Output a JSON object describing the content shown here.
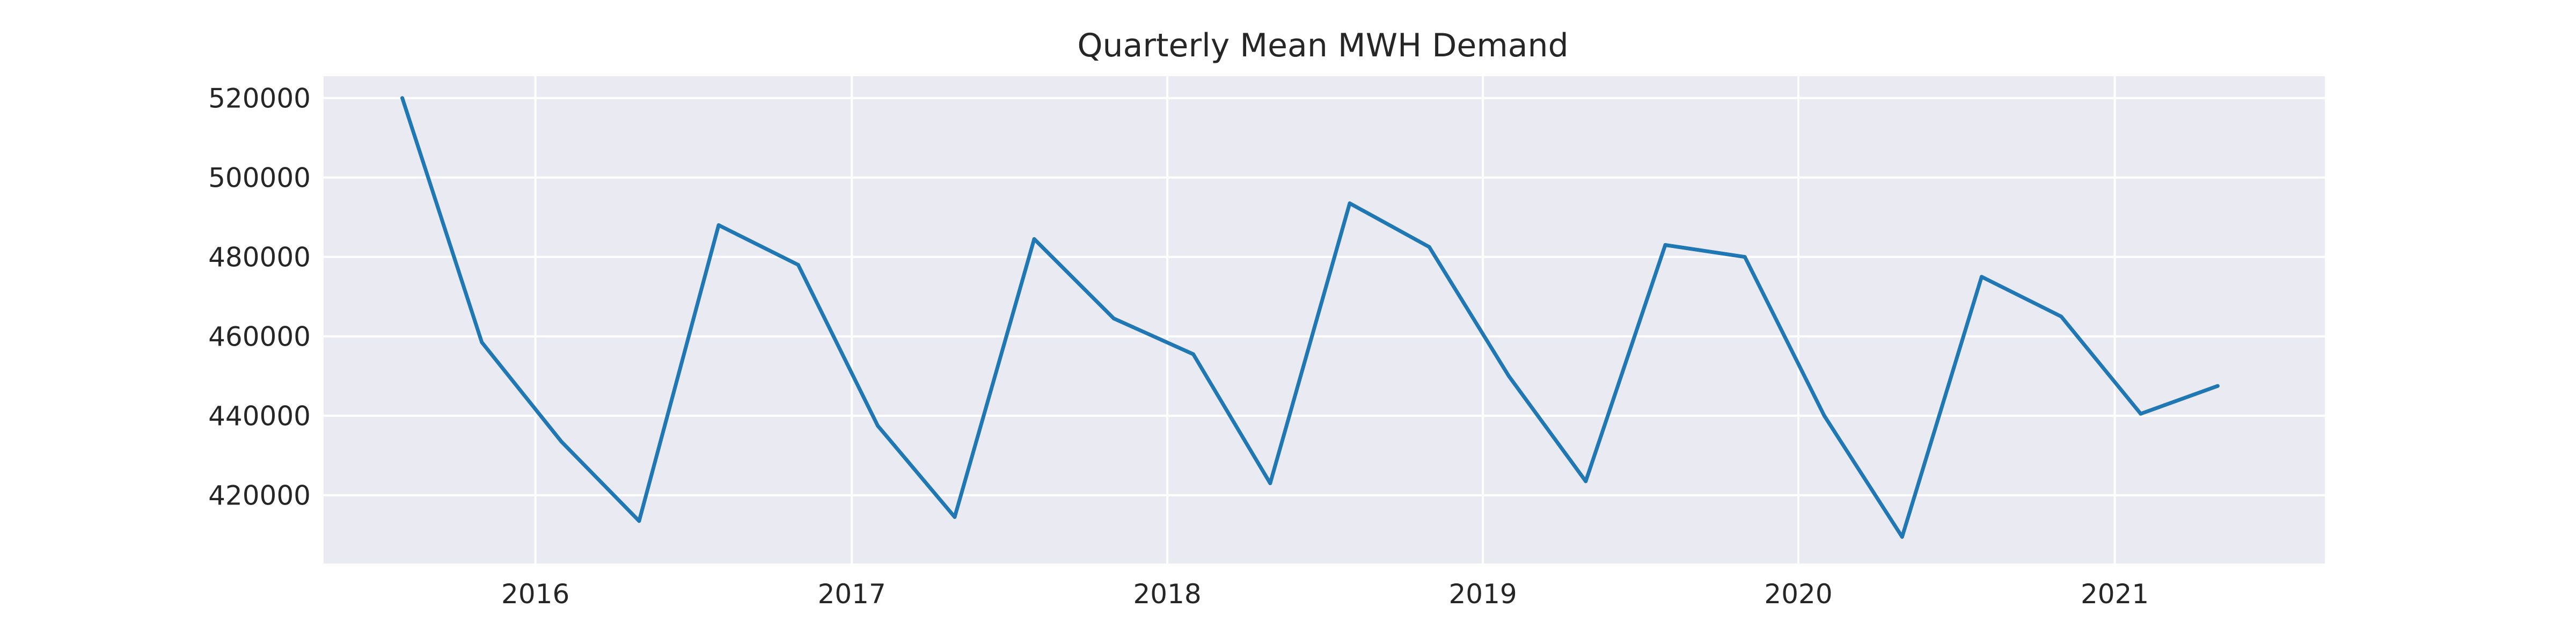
{
  "chart_data": {
    "type": "line",
    "title": "Quarterly Mean MWH Demand",
    "xlabel": "",
    "ylabel": "",
    "x_tick_labels": [
      "2016",
      "2017",
      "2018",
      "2019",
      "2020",
      "2021"
    ],
    "y_tick_labels": [
      "420000",
      "440000",
      "460000",
      "480000",
      "500000",
      "520000"
    ],
    "y_ticks": [
      420000,
      440000,
      460000,
      480000,
      500000,
      520000
    ],
    "xlim": [
      "2015-05-01",
      "2021-09-01"
    ],
    "ylim": [
      402800,
      525500
    ],
    "grid": true,
    "line_color": "#1f77b4",
    "plot_background": "#eaeaf2",
    "grid_color": "#ffffff",
    "series": [
      {
        "x": [
          "2015-07-31",
          "2015-10-31",
          "2016-01-31",
          "2016-04-30",
          "2016-07-31",
          "2016-10-31",
          "2017-01-31",
          "2017-04-30",
          "2017-07-31",
          "2017-10-31",
          "2018-01-31",
          "2018-04-30",
          "2018-07-31",
          "2018-10-31",
          "2019-01-31",
          "2019-04-30",
          "2019-07-31",
          "2019-10-31",
          "2020-01-31",
          "2020-04-30",
          "2020-07-31",
          "2020-10-31",
          "2021-01-31",
          "2021-04-30"
        ],
        "values": [
          520000,
          458500,
          433500,
          413500,
          488000,
          478000,
          437500,
          414500,
          484500,
          464500,
          455500,
          423000,
          493500,
          482500,
          450000,
          423500,
          483000,
          480000,
          440000,
          409500,
          475000,
          465000,
          440500,
          447500
        ]
      }
    ]
  }
}
